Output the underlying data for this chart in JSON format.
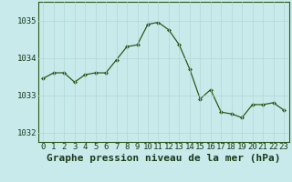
{
  "x": [
    0,
    1,
    2,
    3,
    4,
    5,
    6,
    7,
    8,
    9,
    10,
    11,
    12,
    13,
    14,
    15,
    16,
    17,
    18,
    19,
    20,
    21,
    22,
    23
  ],
  "y": [
    1033.45,
    1033.6,
    1033.6,
    1033.35,
    1033.55,
    1033.6,
    1033.6,
    1033.95,
    1034.3,
    1034.35,
    1034.9,
    1034.95,
    1034.75,
    1034.35,
    1033.7,
    1032.9,
    1033.15,
    1032.55,
    1032.5,
    1032.4,
    1032.75,
    1032.75,
    1032.8,
    1032.6
  ],
  "line_color": "#2d5a1b",
  "marker_color": "#2d5a1b",
  "bg_color": "#c8eaea",
  "grid_color": "#b0d8d8",
  "title": "Graphe pression niveau de la mer (hPa)",
  "ylim_min": 1031.75,
  "ylim_max": 1035.5,
  "yticks": [
    1032,
    1033,
    1034,
    1035
  ],
  "xticks": [
    0,
    1,
    2,
    3,
    4,
    5,
    6,
    7,
    8,
    9,
    10,
    11,
    12,
    13,
    14,
    15,
    16,
    17,
    18,
    19,
    20,
    21,
    22,
    23
  ],
  "title_fontsize": 8,
  "tick_fontsize": 6.5
}
